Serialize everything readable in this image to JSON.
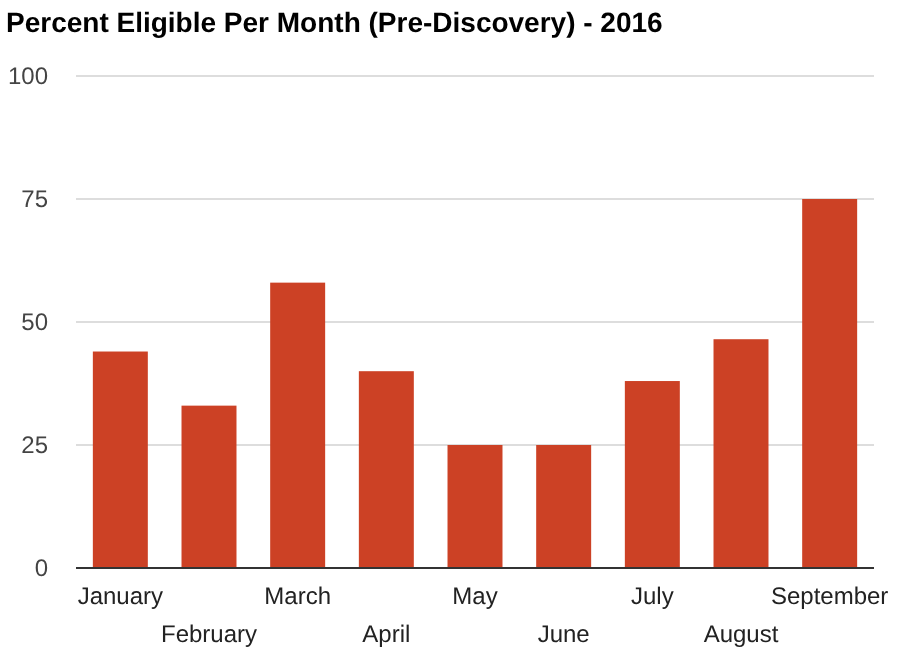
{
  "chart_data": {
    "type": "bar",
    "title": "Percent Eligible Per Month (Pre-Discovery) - 2016",
    "categories": [
      "January",
      "February",
      "March",
      "April",
      "May",
      "June",
      "July",
      "August",
      "September"
    ],
    "values": [
      44,
      33,
      58,
      40,
      25,
      25,
      38,
      46.5,
      75
    ],
    "color": "#cc4125",
    "ylim": [
      0,
      100
    ],
    "yticks": [
      0,
      25,
      50,
      75,
      100
    ],
    "grid": "y"
  }
}
